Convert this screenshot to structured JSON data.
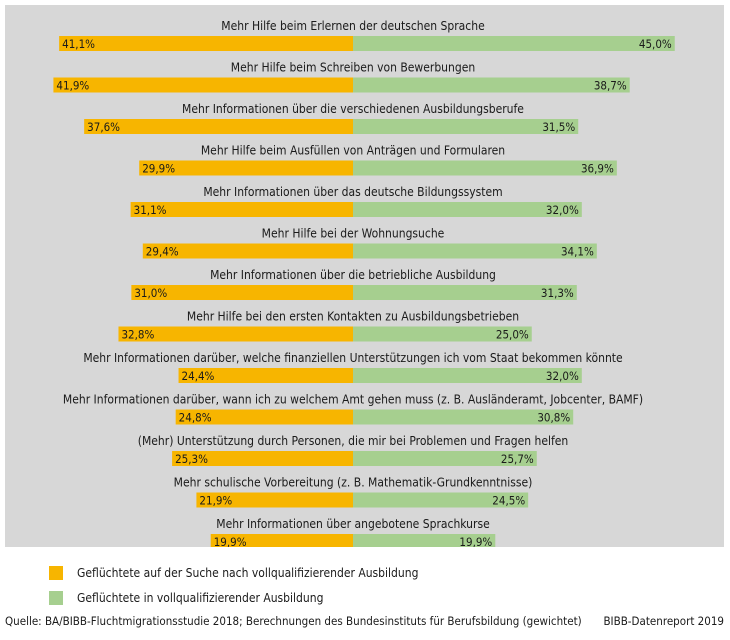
{
  "chart_data": {
    "type": "bar",
    "orientation": "diverging-horizontal",
    "value_format": "percent-decimal-comma",
    "categories": [
      "Mehr Hilfe beim Erlernen der deutschen Sprache",
      "Mehr Hilfe beim Schreiben von Bewerbungen",
      "Mehr Informationen über die verschiedenen Ausbildungsberufe",
      "Mehr Hilfe beim Ausfüllen von Anträgen und Formularen",
      "Mehr Informationen über das deutsche Bildungssystem",
      "Mehr Hilfe bei der Wohnungsuche",
      "Mehr Informationen über die betriebliche Ausbildung",
      "Mehr Hilfe bei den ersten Kontakten zu Ausbildungsbetrieben",
      "Mehr Informationen darüber, welche finanziellen Unterstützungen ich vom Staat bekommen könnte",
      "Mehr Informationen darüber, wann ich zu welchem Amt gehen muss (z. B. Ausländeramt, Jobcenter, BAMF)",
      "(Mehr) Unterstützung durch Personen, die mir bei Problemen und Fragen helfen",
      "Mehr schulische Vorbereitung (z. B. Mathematik-Grundkenntnisse)",
      "Mehr Informationen über angebotene Sprachkurse"
    ],
    "series": [
      {
        "name": "Geflüchtete auf der Suche nach vollqualifizierender Ausbildung",
        "color": "#f7b500",
        "side": "left",
        "values": [
          41.1,
          41.9,
          37.6,
          29.9,
          31.1,
          29.4,
          31.0,
          32.8,
          24.4,
          24.8,
          25.3,
          21.9,
          19.9
        ]
      },
      {
        "name": "Geflüchtete in vollqualifizierender Ausbildung",
        "color": "#a6cf8f",
        "side": "right",
        "values": [
          45.0,
          38.7,
          31.5,
          36.9,
          32.0,
          34.1,
          31.3,
          25.0,
          32.0,
          30.8,
          25.7,
          24.5,
          19.9
        ]
      }
    ]
  },
  "footer": {
    "source": "Quelle: BA/BIBB-Fluchtmigrationsstudie 2018; Berechnungen des Bundesinstituts für Berufsbildung (gewichtet)",
    "credit": "BIBB-Datenreport 2019"
  },
  "colors": {
    "panel_background": "#d7d7d7",
    "page_background": "#ffffff"
  }
}
